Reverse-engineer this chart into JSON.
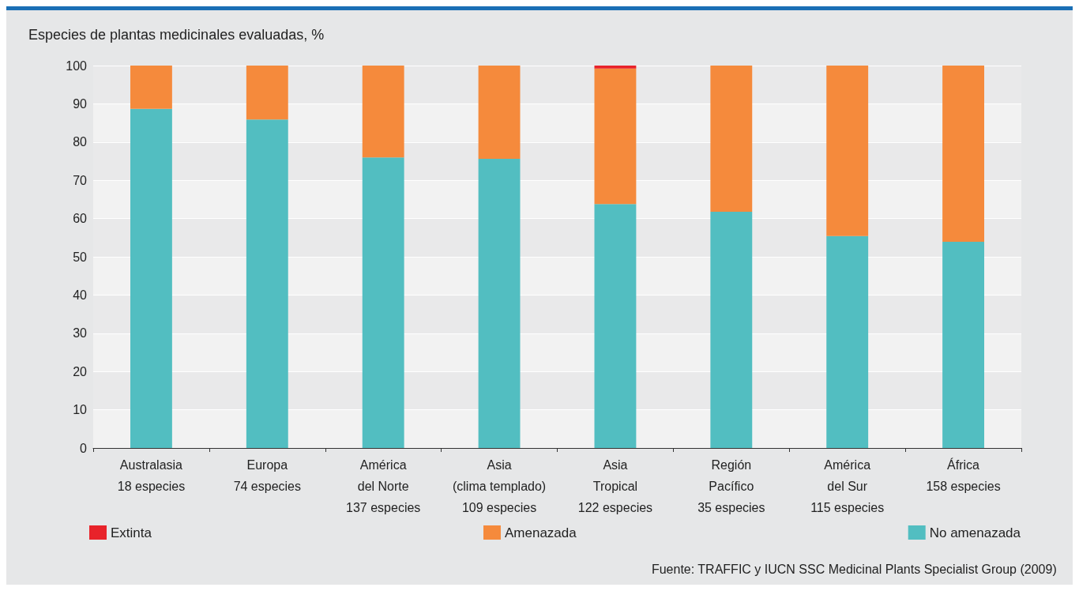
{
  "chart_data": {
    "type": "bar",
    "stacked": true,
    "ylabel": "Especies de plantas medicinales evaluadas, %",
    "categories": [
      "Australasia\n18 especies",
      "Europa\n74 especies",
      "América\ndel Norte\n137 especies",
      "Asia\n(clima templado)\n109 especies",
      "Asia\nTropical\n122 especies",
      "Región\nPacífico\n35 especies",
      "América\ndel Sur\n115 especies",
      "África\n158 especies"
    ],
    "series": [
      {
        "name": "No amenazada",
        "color": "#52bec1",
        "values": [
          88.7,
          85.9,
          76.0,
          75.6,
          63.8,
          61.8,
          55.4,
          53.9
        ]
      },
      {
        "name": "Amenazada",
        "color": "#f58a3c",
        "values": [
          11.3,
          14.1,
          24.0,
          24.4,
          35.4,
          38.2,
          44.6,
          46.1
        ]
      },
      {
        "name": "Extinta",
        "color": "#e8232a",
        "values": [
          null,
          null,
          null,
          null,
          0.8,
          null,
          null,
          null
        ]
      }
    ],
    "ylim": [
      0,
      100
    ],
    "yticks": [
      0,
      10,
      20,
      30,
      40,
      50,
      60,
      70,
      80,
      90,
      100
    ],
    "grid": "y",
    "legend": "bottom",
    "annotations": [
      "Fuente: TRAFFIC y IUCN SSC Medicinal Plants Specialist Group (2009)"
    ]
  }
}
